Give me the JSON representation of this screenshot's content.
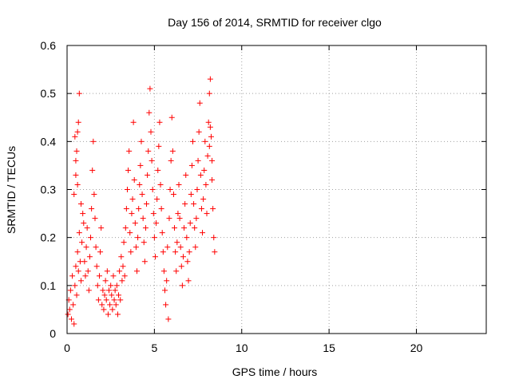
{
  "chart_data": {
    "type": "scatter",
    "title": "Day 156 of 2014, SRMTID for receiver clgo",
    "xlabel": "GPS time / hours",
    "ylabel": "SRMTID / TECUs",
    "xlim": [
      0,
      24
    ],
    "ylim": [
      0,
      0.6
    ],
    "xticks": [
      0,
      5,
      10,
      15,
      20
    ],
    "xtick_labels": [
      "0",
      "5",
      "10",
      "15",
      "20"
    ],
    "yticks": [
      0,
      0.1,
      0.2,
      0.3,
      0.4,
      0.5,
      0.6
    ],
    "ytick_labels": [
      "0",
      "0.1",
      "0.2",
      "0.3",
      "0.4",
      "0.5",
      "0.6"
    ],
    "grid": true,
    "marker": "+",
    "series": [
      {
        "name": "SRMTID",
        "color": "#ff0000",
        "points": [
          [
            0.05,
            0.04
          ],
          [
            0.1,
            0.07
          ],
          [
            0.15,
            0.05
          ],
          [
            0.2,
            0.09
          ],
          [
            0.25,
            0.03
          ],
          [
            0.3,
            0.12
          ],
          [
            0.35,
            0.06
          ],
          [
            0.4,
            0.02
          ],
          [
            0.45,
            0.1
          ],
          [
            0.5,
            0.14
          ],
          [
            0.55,
            0.08
          ],
          [
            0.6,
            0.17
          ],
          [
            0.65,
            0.13
          ],
          [
            0.7,
            0.21
          ],
          [
            0.75,
            0.15
          ],
          [
            0.8,
            0.11
          ],
          [
            0.85,
            0.19
          ],
          [
            0.9,
            0.25
          ],
          [
            0.4,
            0.29
          ],
          [
            0.5,
            0.33
          ],
          [
            0.55,
            0.38
          ],
          [
            0.6,
            0.42
          ],
          [
            0.65,
            0.44
          ],
          [
            0.7,
            0.5
          ],
          [
            0.45,
            0.41
          ],
          [
            0.5,
            0.36
          ],
          [
            0.6,
            0.31
          ],
          [
            0.8,
            0.27
          ],
          [
            0.95,
            0.23
          ],
          [
            1.0,
            0.15
          ],
          [
            1.05,
            0.12
          ],
          [
            1.1,
            0.18
          ],
          [
            1.15,
            0.22
          ],
          [
            1.2,
            0.13
          ],
          [
            1.25,
            0.09
          ],
          [
            1.3,
            0.16
          ],
          [
            1.35,
            0.2
          ],
          [
            1.4,
            0.26
          ],
          [
            1.45,
            0.34
          ],
          [
            1.5,
            0.4
          ],
          [
            1.55,
            0.29
          ],
          [
            1.6,
            0.24
          ],
          [
            1.65,
            0.18
          ],
          [
            1.7,
            0.14
          ],
          [
            1.75,
            0.1
          ],
          [
            1.8,
            0.07
          ],
          [
            1.85,
            0.12
          ],
          [
            1.9,
            0.17
          ],
          [
            1.95,
            0.22
          ],
          [
            2.0,
            0.06
          ],
          [
            2.05,
            0.09
          ],
          [
            2.1,
            0.05
          ],
          [
            2.15,
            0.08
          ],
          [
            2.2,
            0.11
          ],
          [
            2.25,
            0.07
          ],
          [
            2.3,
            0.13
          ],
          [
            2.35,
            0.04
          ],
          [
            2.4,
            0.09
          ],
          [
            2.45,
            0.06
          ],
          [
            2.5,
            0.1
          ],
          [
            2.55,
            0.08
          ],
          [
            2.6,
            0.05
          ],
          [
            2.65,
            0.12
          ],
          [
            2.7,
            0.07
          ],
          [
            2.75,
            0.09
          ],
          [
            2.8,
            0.06
          ],
          [
            2.85,
            0.1
          ],
          [
            2.9,
            0.04
          ],
          [
            2.95,
            0.08
          ],
          [
            3.0,
            0.13
          ],
          [
            3.05,
            0.07
          ],
          [
            3.1,
            0.16
          ],
          [
            3.15,
            0.11
          ],
          [
            3.2,
            0.14
          ],
          [
            3.25,
            0.19
          ],
          [
            3.3,
            0.12
          ],
          [
            3.35,
            0.22
          ],
          [
            3.4,
            0.26
          ],
          [
            3.45,
            0.3
          ],
          [
            3.5,
            0.34
          ],
          [
            3.55,
            0.38
          ],
          [
            3.6,
            0.21
          ],
          [
            3.65,
            0.17
          ],
          [
            3.7,
            0.25
          ],
          [
            3.75,
            0.28
          ],
          [
            3.8,
            0.44
          ],
          [
            3.85,
            0.32
          ],
          [
            3.9,
            0.23
          ],
          [
            3.95,
            0.18
          ],
          [
            4.0,
            0.13
          ],
          [
            4.05,
            0.2
          ],
          [
            4.1,
            0.26
          ],
          [
            4.15,
            0.31
          ],
          [
            4.2,
            0.35
          ],
          [
            4.25,
            0.4
          ],
          [
            4.3,
            0.29
          ],
          [
            4.35,
            0.24
          ],
          [
            4.4,
            0.19
          ],
          [
            4.45,
            0.15
          ],
          [
            4.5,
            0.22
          ],
          [
            4.55,
            0.27
          ],
          [
            4.6,
            0.33
          ],
          [
            4.65,
            0.38
          ],
          [
            4.7,
            0.46
          ],
          [
            4.75,
            0.51
          ],
          [
            4.8,
            0.42
          ],
          [
            4.85,
            0.36
          ],
          [
            4.9,
            0.3
          ],
          [
            4.95,
            0.25
          ],
          [
            5.0,
            0.2
          ],
          [
            5.05,
            0.16
          ],
          [
            5.1,
            0.23
          ],
          [
            5.15,
            0.28
          ],
          [
            5.2,
            0.34
          ],
          [
            5.25,
            0.39
          ],
          [
            5.3,
            0.44
          ],
          [
            5.35,
            0.31
          ],
          [
            5.4,
            0.26
          ],
          [
            5.45,
            0.21
          ],
          [
            5.5,
            0.17
          ],
          [
            5.55,
            0.13
          ],
          [
            5.6,
            0.09
          ],
          [
            5.65,
            0.06
          ],
          [
            5.7,
            0.11
          ],
          [
            5.75,
            0.18
          ],
          [
            5.8,
            0.03
          ],
          [
            5.85,
            0.24
          ],
          [
            5.9,
            0.3
          ],
          [
            5.95,
            0.36
          ],
          [
            6.0,
            0.45
          ],
          [
            6.05,
            0.38
          ],
          [
            6.1,
            0.29
          ],
          [
            6.15,
            0.22
          ],
          [
            6.2,
            0.17
          ],
          [
            6.25,
            0.13
          ],
          [
            6.3,
            0.19
          ],
          [
            6.35,
            0.25
          ],
          [
            6.4,
            0.31
          ],
          [
            6.45,
            0.24
          ],
          [
            6.5,
            0.18
          ],
          [
            6.55,
            0.14
          ],
          [
            6.6,
            0.1
          ],
          [
            6.65,
            0.16
          ],
          [
            6.7,
            0.22
          ],
          [
            6.75,
            0.27
          ],
          [
            6.8,
            0.33
          ],
          [
            6.85,
            0.2
          ],
          [
            6.9,
            0.15
          ],
          [
            6.95,
            0.11
          ],
          [
            7.0,
            0.17
          ],
          [
            7.05,
            0.23
          ],
          [
            7.1,
            0.29
          ],
          [
            7.15,
            0.35
          ],
          [
            7.2,
            0.4
          ],
          [
            7.25,
            0.27
          ],
          [
            7.3,
            0.22
          ],
          [
            7.35,
            0.18
          ],
          [
            7.4,
            0.24
          ],
          [
            7.45,
            0.3
          ],
          [
            7.5,
            0.36
          ],
          [
            7.55,
            0.42
          ],
          [
            7.6,
            0.48
          ],
          [
            7.65,
            0.33
          ],
          [
            7.7,
            0.26
          ],
          [
            7.75,
            0.21
          ],
          [
            7.8,
            0.28
          ],
          [
            7.85,
            0.34
          ],
          [
            7.9,
            0.4
          ],
          [
            7.95,
            0.31
          ],
          [
            8.0,
            0.25
          ],
          [
            8.05,
            0.37
          ],
          [
            8.1,
            0.44
          ],
          [
            8.15,
            0.5
          ],
          [
            8.2,
            0.53
          ],
          [
            8.25,
            0.41
          ],
          [
            8.3,
            0.32
          ],
          [
            8.35,
            0.26
          ],
          [
            8.4,
            0.2
          ],
          [
            8.45,
            0.17
          ],
          [
            8.15,
            0.39
          ],
          [
            8.2,
            0.43
          ],
          [
            8.3,
            0.36
          ]
        ]
      }
    ]
  }
}
